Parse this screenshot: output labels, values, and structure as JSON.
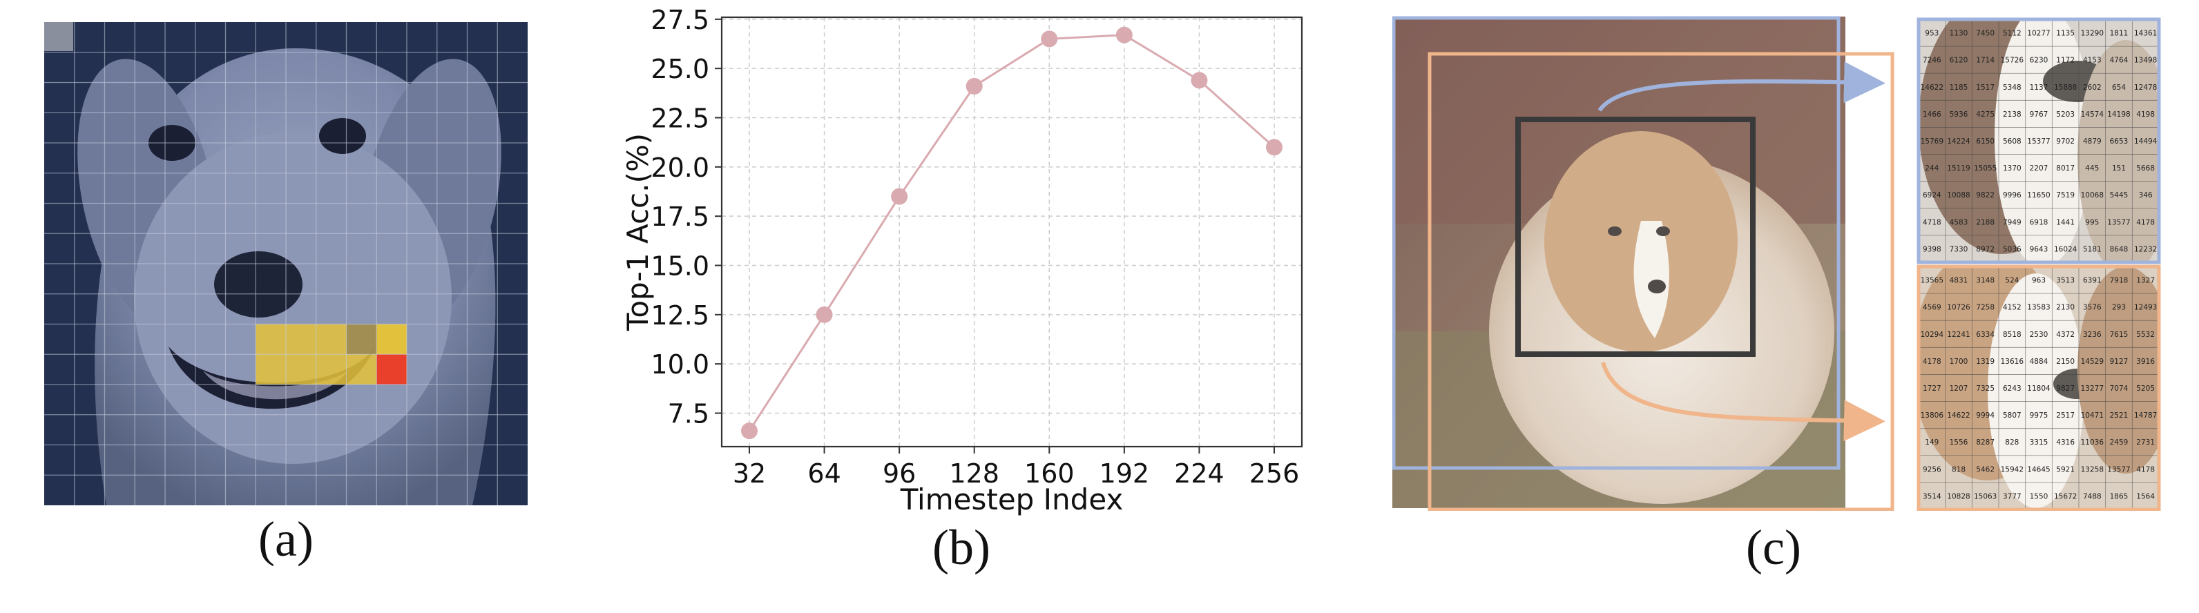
{
  "captions": {
    "a": "(a)",
    "b": "(b)",
    "c": "(c)"
  },
  "panel_a": {
    "grid_size": 16,
    "tint_color": "#3a4c78",
    "highlight_color_yellow": "#e4c23a",
    "highlight_color_red": "#e8402a"
  },
  "chart_data": {
    "type": "line",
    "title": "",
    "xlabel": "Timestep Index",
    "ylabel": "Top-1 Acc.(%)",
    "categories": [
      "32",
      "64",
      "96",
      "128",
      "160",
      "192",
      "224",
      "256"
    ],
    "series": [
      {
        "values": [
          6.6,
          12.5,
          18.5,
          24.1,
          26.5,
          26.7,
          24.4,
          21.0
        ]
      }
    ],
    "ylim": [
      5.8,
      27.6
    ],
    "yticks": [
      "7.5",
      "10.0",
      "12.5",
      "15.0",
      "17.5",
      "20.0",
      "22.5",
      "25.0",
      "27.5"
    ],
    "ytick_values": [
      7.5,
      10.0,
      12.5,
      15.0,
      17.5,
      20.0,
      22.5,
      25.0,
      27.5
    ],
    "grid": true,
    "color": "#d9aab0"
  },
  "panel_c": {
    "blue_color": "#9fb3dc",
    "orange_color": "#f0b58a",
    "focus_box_color": "#3a3a3a",
    "token_grid_top": [
      [
        "953",
        "1130",
        "7450",
        "5112",
        "10277",
        "1135",
        "13290",
        "1811",
        "14361"
      ],
      [
        "7246",
        "6120",
        "1714",
        "15726",
        "6230",
        "1172",
        "4153",
        "4764",
        "13498"
      ],
      [
        "14622",
        "1185",
        "1517",
        "5348",
        "1137",
        "15888",
        "2602",
        "654",
        "12478"
      ],
      [
        "1466",
        "5936",
        "4275",
        "2138",
        "9767",
        "5203",
        "14574",
        "14198",
        "4198"
      ],
      [
        "15769",
        "14224",
        "6150",
        "5608",
        "15377",
        "9702",
        "4879",
        "6653",
        "14494"
      ],
      [
        "244",
        "15119",
        "15055",
        "1370",
        "2207",
        "8017",
        "445",
        "151",
        "5668"
      ],
      [
        "6924",
        "10088",
        "9822",
        "9996",
        "11650",
        "7519",
        "10068",
        "5445",
        "346"
      ],
      [
        "4718",
        "4583",
        "2188",
        "7949",
        "6918",
        "1441",
        "995",
        "13577",
        "4178"
      ],
      [
        "9398",
        "7330",
        "8972",
        "5036",
        "9643",
        "16024",
        "5181",
        "8648",
        "12232"
      ]
    ],
    "token_grid_bottom": [
      [
        "13565",
        "4831",
        "3148",
        "524",
        "963",
        "3513",
        "6391",
        "7918",
        "1327"
      ],
      [
        "4569",
        "10726",
        "7258",
        "4152",
        "13583",
        "2130",
        "3576",
        "293",
        "12493"
      ],
      [
        "10294",
        "12241",
        "6334",
        "8518",
        "2530",
        "4372",
        "3236",
        "7615",
        "5532"
      ],
      [
        "4178",
        "1700",
        "1319",
        "13616",
        "4884",
        "2150",
        "14529",
        "9127",
        "3916"
      ],
      [
        "1727",
        "1207",
        "7325",
        "6243",
        "11804",
        "9827",
        "13277",
        "7074",
        "5205"
      ],
      [
        "13806",
        "14622",
        "9994",
        "5807",
        "9975",
        "2517",
        "10471",
        "2521",
        "14787"
      ],
      [
        "149",
        "1556",
        "8287",
        "828",
        "3315",
        "4316",
        "11036",
        "2459",
        "2731"
      ],
      [
        "9256",
        "818",
        "5462",
        "15942",
        "14645",
        "5921",
        "13258",
        "13577",
        "4178"
      ],
      [
        "3514",
        "10828",
        "15063",
        "3777",
        "1550",
        "15672",
        "7488",
        "1865",
        "1564"
      ]
    ]
  }
}
